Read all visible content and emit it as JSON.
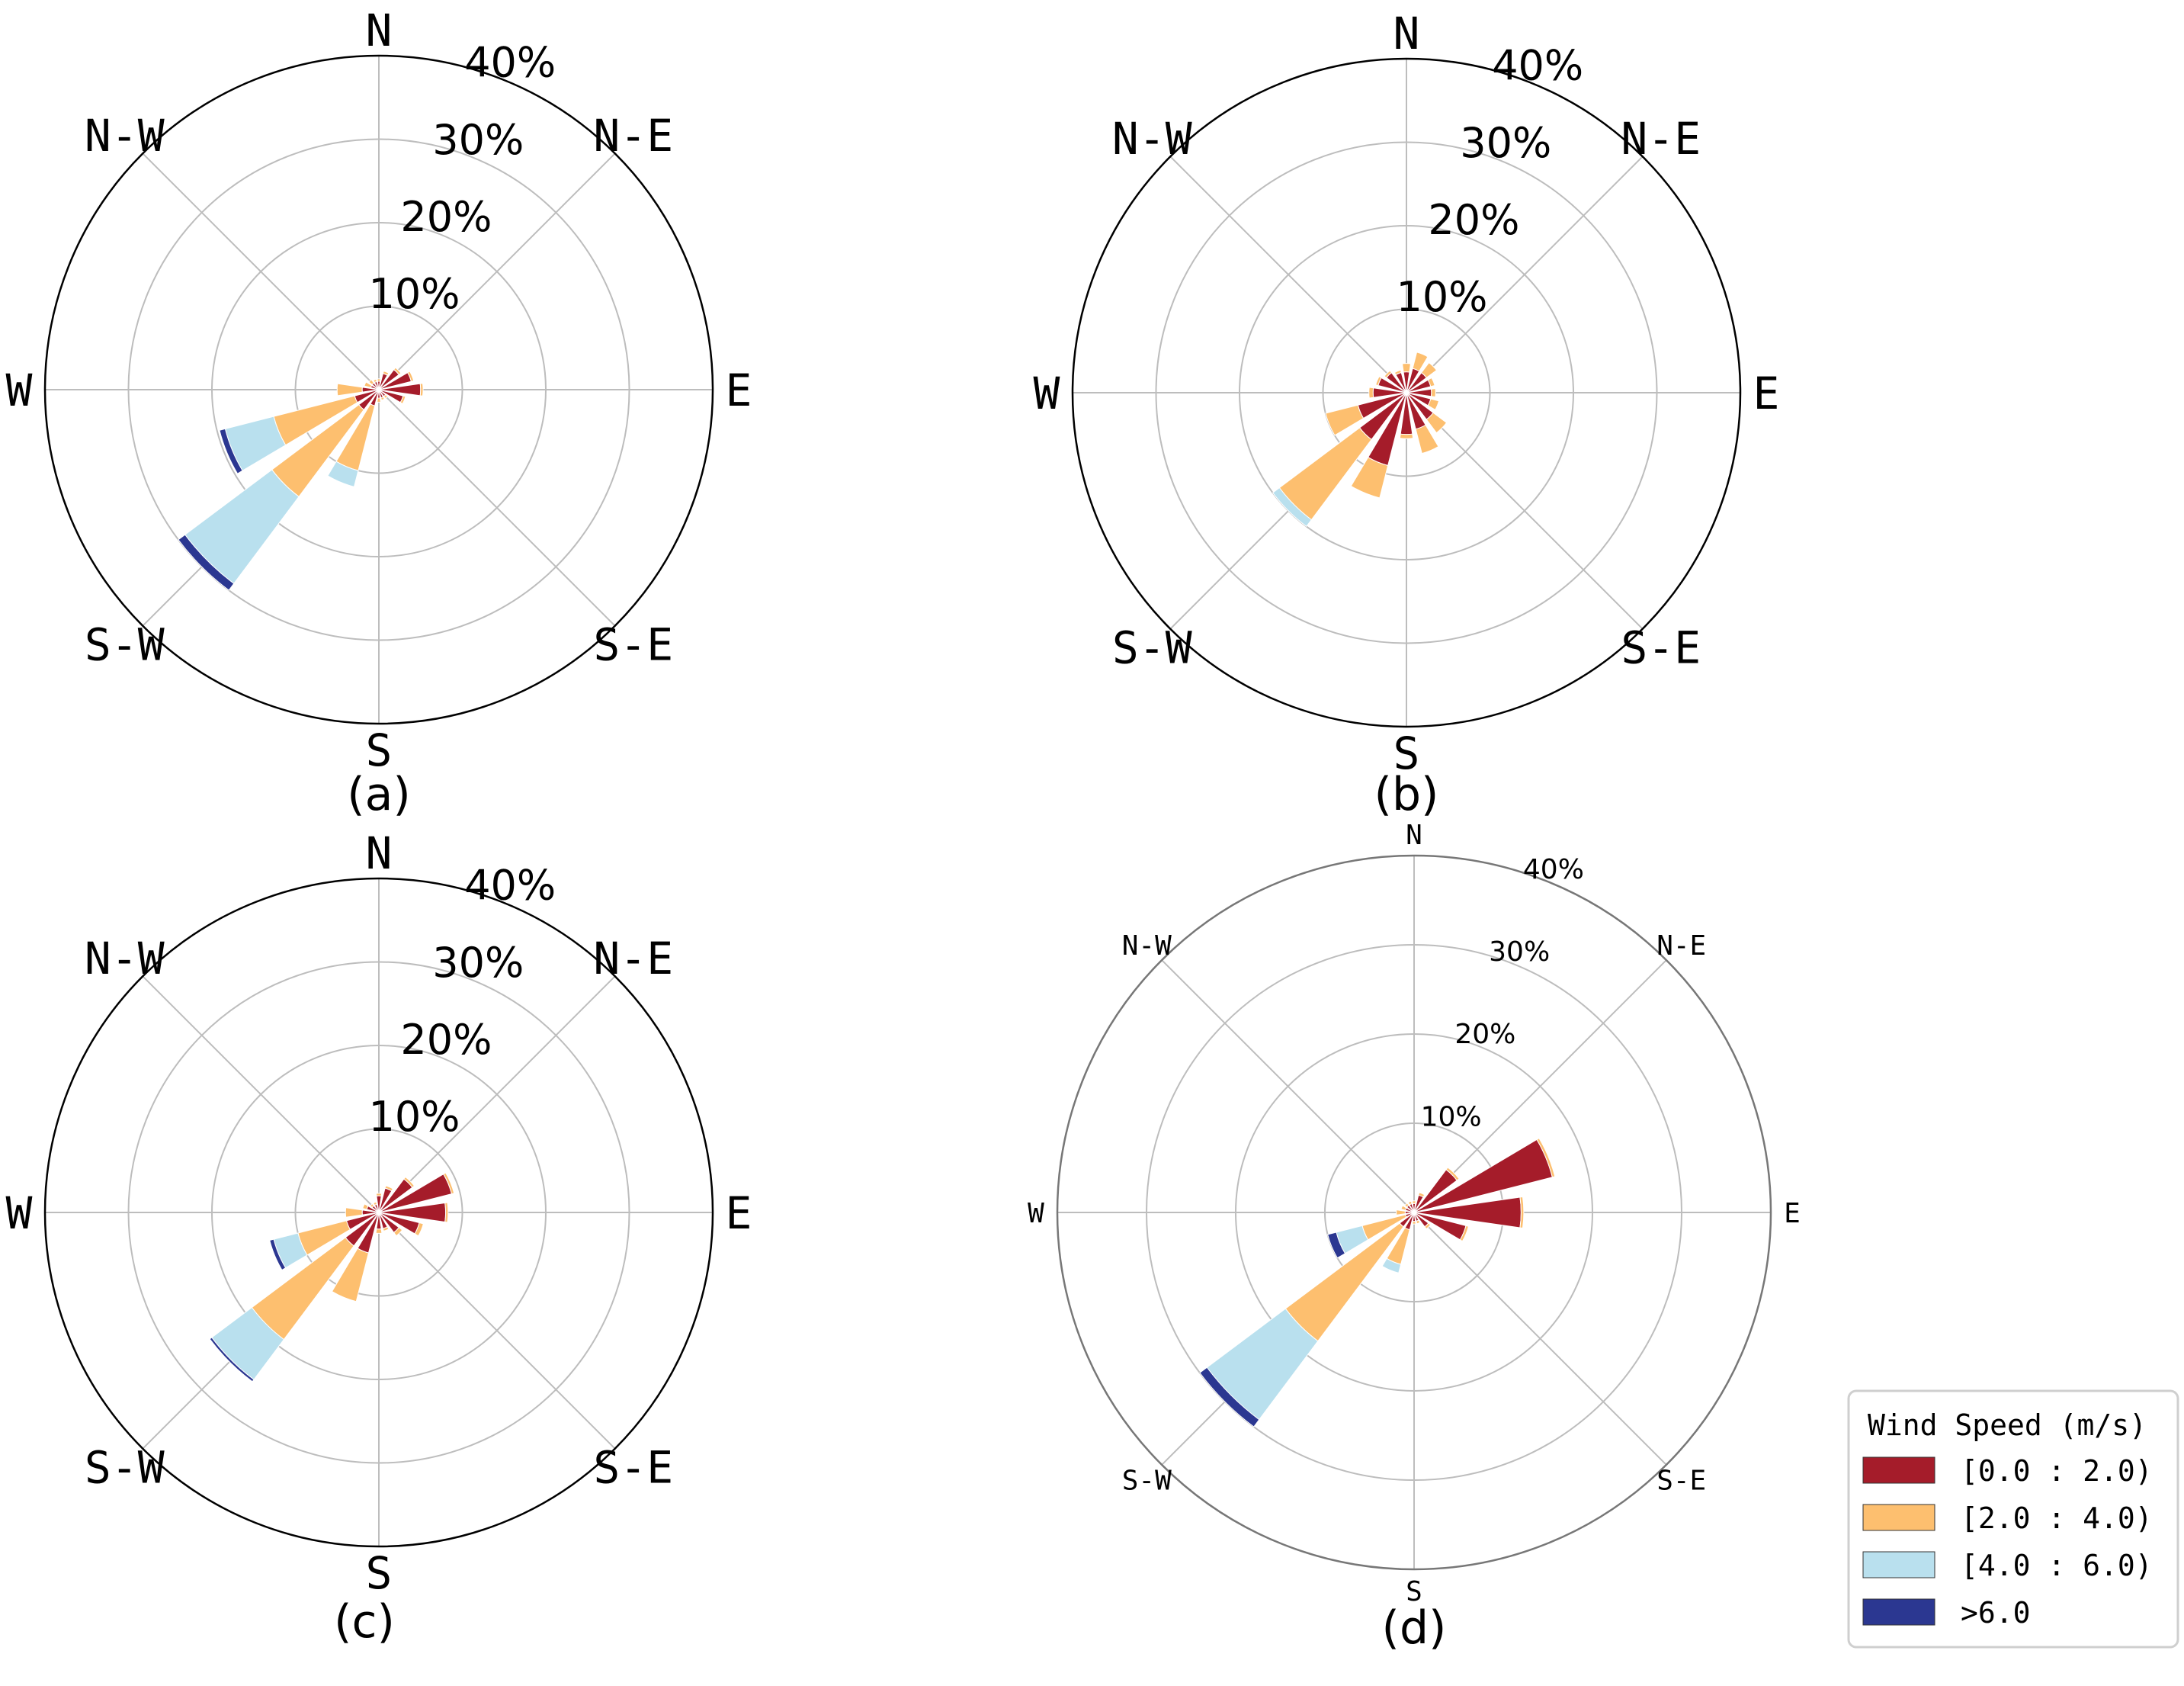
{
  "legend": {
    "title": "Wind Speed (m/s)",
    "bins": [
      {
        "label": "[0.0 : 2.0)",
        "color": "#A51C2A"
      },
      {
        "label": "[2.0 : 4.0)",
        "color": "#FDBF6F"
      },
      {
        "label": "[4.0 : 6.0)",
        "color": "#B9E0EE"
      },
      {
        "label": ">6.0",
        "color": "#2B3791"
      }
    ]
  },
  "chart_data": [
    {
      "type": "windrose",
      "caption": "(a)",
      "directions": [
        "N",
        "N-E",
        "E",
        "S-E",
        "S",
        "S-W",
        "W",
        "N-W"
      ],
      "radial_ticks": [
        "10%",
        "20%",
        "30%",
        "40%"
      ],
      "rmax": 40,
      "sector_centers_deg": [
        0,
        22.5,
        45,
        67.5,
        90,
        112.5,
        135,
        157.5,
        180,
        202.5,
        225,
        247.5,
        270,
        292.5,
        315,
        337.5
      ],
      "series": [
        {
          "name": "[0.0 : 2.0)",
          "values": [
            1,
            2,
            3,
            4,
            5,
            3,
            1,
            1,
            1,
            2,
            3,
            3,
            2,
            1,
            1,
            1
          ]
        },
        {
          "name": "[2.0 : 4.0)",
          "values": [
            0.3,
            0.3,
            0.3,
            0.3,
            0.3,
            0.3,
            0.3,
            0.3,
            0.5,
            8,
            13,
            10,
            3,
            0.8,
            0.5,
            0.3
          ]
        },
        {
          "name": "[4.0 : 6.0)",
          "values": [
            0,
            0,
            0,
            0,
            0,
            0,
            0,
            0,
            0,
            2,
            13,
            6,
            0,
            0,
            0,
            0
          ]
        },
        {
          "name": ">6.0",
          "values": [
            0,
            0,
            0,
            0,
            0,
            0,
            0,
            0,
            0,
            0,
            1,
            0.7,
            0,
            0,
            0,
            0
          ]
        }
      ]
    },
    {
      "type": "windrose",
      "caption": "(b)",
      "directions": [
        "N",
        "N-E",
        "E",
        "S-E",
        "S",
        "S-W",
        "W",
        "N-W"
      ],
      "radial_ticks": [
        "10%",
        "20%",
        "30%",
        "40%"
      ],
      "rmax": 40,
      "sector_centers_deg": [
        0,
        22.5,
        45,
        67.5,
        90,
        112.5,
        135,
        157.5,
        180,
        202.5,
        225,
        247.5,
        270,
        292.5,
        315,
        337.5
      ],
      "series": [
        {
          "name": "[0.0 : 2.0)",
          "values": [
            2.5,
            3,
            3,
            3,
            3,
            3,
            4,
            4.5,
            5,
            9,
            7,
            6,
            4,
            3.5,
            3,
            2.5
          ]
        },
        {
          "name": "[2.0 : 4.0)",
          "values": [
            1,
            2,
            1.5,
            0.5,
            0.5,
            1,
            2,
            3,
            0.5,
            4,
            12,
            4,
            0.5,
            0.3,
            0.3,
            0.3
          ]
        },
        {
          "name": "[4.0 : 6.0)",
          "values": [
            0,
            0,
            0,
            0,
            0,
            0,
            0,
            0,
            0,
            0,
            1,
            0,
            0,
            0,
            0,
            0
          ]
        },
        {
          "name": ">6.0",
          "values": [
            0,
            0,
            0,
            0,
            0,
            0,
            0,
            0,
            0,
            0,
            0,
            0,
            0,
            0,
            0,
            0
          ]
        }
      ]
    },
    {
      "type": "windrose",
      "caption": "(c)",
      "directions": [
        "N",
        "N-E",
        "E",
        "S-E",
        "S",
        "S-W",
        "W",
        "N-W"
      ],
      "radial_ticks": [
        "10%",
        "20%",
        "30%",
        "40%"
      ],
      "rmax": 40,
      "sector_centers_deg": [
        0,
        22.5,
        45,
        67.5,
        90,
        112.5,
        135,
        157.5,
        180,
        202.5,
        225,
        247.5,
        270,
        292.5,
        315,
        337.5
      ],
      "series": [
        {
          "name": "[0.0 : 2.0)",
          "values": [
            2,
            3,
            5,
            9,
            8,
            5,
            3,
            2,
            2,
            5,
            5,
            4,
            2,
            1.5,
            1,
            1
          ]
        },
        {
          "name": "[2.0 : 4.0)",
          "values": [
            0.3,
            0.3,
            0.3,
            0.3,
            0.3,
            0.5,
            0.5,
            0.3,
            0.5,
            6,
            14,
            6,
            2,
            0.5,
            0.3,
            0.3
          ]
        },
        {
          "name": "[4.0 : 6.0)",
          "values": [
            0,
            0,
            0,
            0,
            0,
            0,
            0,
            0,
            0,
            0,
            6,
            3,
            0,
            0,
            0,
            0
          ]
        },
        {
          "name": ">6.0",
          "values": [
            0,
            0,
            0,
            0,
            0,
            0,
            0,
            0,
            0,
            0,
            0.3,
            0.5,
            0,
            0,
            0,
            0
          ]
        }
      ]
    },
    {
      "type": "windrose",
      "caption": "(d)",
      "directions": [
        "N",
        "N-E",
        "E",
        "S-E",
        "S",
        "S-W",
        "W",
        "N-W"
      ],
      "radial_ticks": [
        "10%",
        "20%",
        "30%",
        "40%"
      ],
      "rmax": 40,
      "sector_centers_deg": [
        0,
        22.5,
        45,
        67.5,
        90,
        112.5,
        135,
        157.5,
        180,
        202.5,
        225,
        247.5,
        270,
        292.5,
        315,
        337.5
      ],
      "series": [
        {
          "name": "[0.0 : 2.0)",
          "values": [
            1,
            2,
            6,
            16,
            12,
            6,
            2,
            1,
            1,
            2,
            2,
            1,
            1,
            1,
            1,
            1
          ]
        },
        {
          "name": "[2.0 : 4.0)",
          "values": [
            0.3,
            0.3,
            0.3,
            0.3,
            0.3,
            0.3,
            0.3,
            0.3,
            0.3,
            4,
            16,
            5,
            1,
            0.5,
            0.3,
            0.3
          ]
        },
        {
          "name": "[4.0 : 6.0)",
          "values": [
            0,
            0,
            0,
            0,
            0,
            0,
            0,
            0,
            0,
            1,
            11,
            3,
            0,
            0,
            0,
            0
          ]
        },
        {
          "name": ">6.0",
          "values": [
            0,
            0,
            0,
            0,
            0,
            0,
            0,
            0,
            0,
            0,
            1,
            1,
            0,
            0,
            0,
            0
          ]
        }
      ]
    }
  ]
}
